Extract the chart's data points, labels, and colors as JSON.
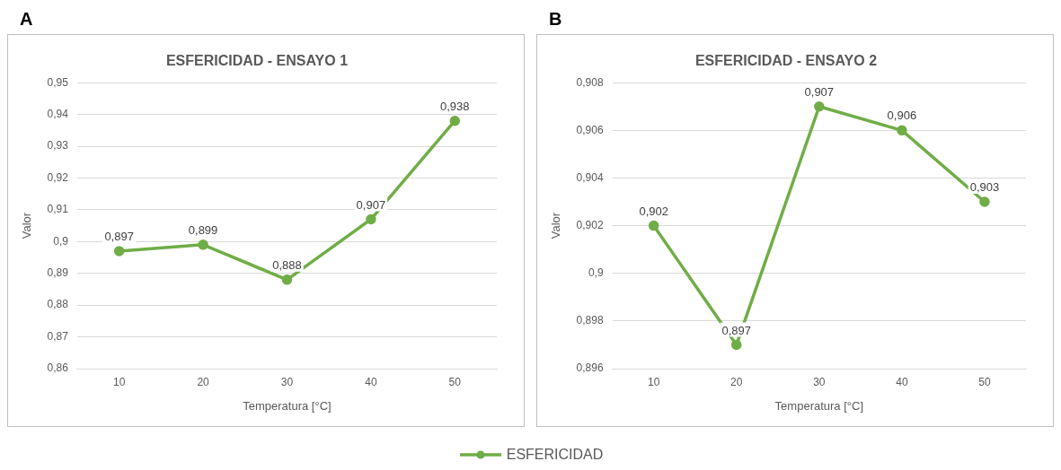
{
  "chart_data": [
    {
      "type": "line",
      "title": "ESFERICIDAD - ENSAYO 1",
      "xlabel": "Temperatura [°C]",
      "ylabel": "Valor",
      "annotations": [
        "A"
      ],
      "categories": [
        "10",
        "20",
        "30",
        "40",
        "50"
      ],
      "series": [
        {
          "name": "ESFERICIDAD",
          "color": "#70ad47",
          "values": [
            0.897,
            0.899,
            0.888,
            0.907,
            0.938
          ],
          "value_labels": [
            "0,897",
            "0,899",
            "0,888",
            "0,907",
            "0,938"
          ]
        }
      ],
      "ylim": [
        0.86,
        0.95
      ],
      "yticks": [
        {
          "value": 0.86,
          "label": "0,86"
        },
        {
          "value": 0.87,
          "label": "0,87"
        },
        {
          "value": 0.88,
          "label": "0,88"
        },
        {
          "value": 0.89,
          "label": "0,89"
        },
        {
          "value": 0.9,
          "label": "0,9"
        },
        {
          "value": 0.91,
          "label": "0,91"
        },
        {
          "value": 0.92,
          "label": "0,92"
        },
        {
          "value": 0.93,
          "label": "0,93"
        },
        {
          "value": 0.94,
          "label": "0,94"
        },
        {
          "value": 0.95,
          "label": "0,95"
        }
      ],
      "grid": "y",
      "marker": "circle",
      "line_style": "solid",
      "legend": "bottom"
    },
    {
      "type": "line",
      "title": "ESFERICIDAD - ENSAYO 2",
      "xlabel": "Temperatura [°C]",
      "ylabel": "Valor",
      "annotations": [
        "B"
      ],
      "categories": [
        "10",
        "20",
        "30",
        "40",
        "50"
      ],
      "series": [
        {
          "color": "#70ad47",
          "values": [
            0.902,
            0.897,
            0.907,
            0.906,
            0.903
          ],
          "value_labels": [
            "0,902",
            "0,897",
            "0,907",
            "0,906",
            "0,903"
          ]
        }
      ],
      "ylim": [
        0.896,
        0.908
      ],
      "yticks": [
        {
          "value": 0.896,
          "label": "0,896"
        },
        {
          "value": 0.898,
          "label": "0,898"
        },
        {
          "value": 0.9,
          "label": "0,9"
        },
        {
          "value": 0.902,
          "label": "0,902"
        },
        {
          "value": 0.904,
          "label": "0,904"
        },
        {
          "value": 0.906,
          "label": "0,906"
        },
        {
          "value": 0.908,
          "label": "0,908"
        }
      ],
      "grid": "y",
      "marker": "circle",
      "line_style": "solid"
    }
  ]
}
